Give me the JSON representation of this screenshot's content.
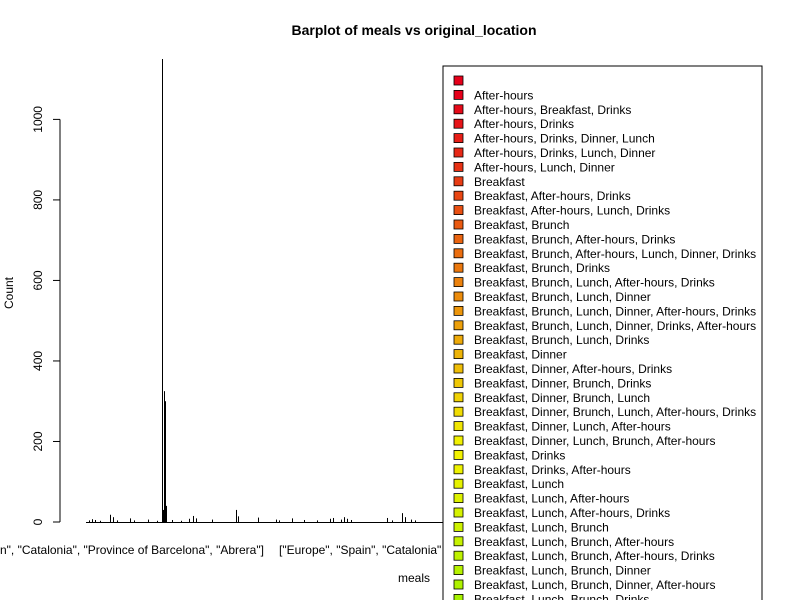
{
  "chart_data": {
    "type": "bar",
    "title": "Barplot of meals vs original_location",
    "xlabel": "meals",
    "ylabel": "Count",
    "ylim": [
      0,
      1150
    ],
    "yticks": [
      0,
      200,
      400,
      600,
      800,
      1000
    ],
    "x_tick_labels": [
      "n\", \"Catalonia\", \"Province of Barcelona\", \"Abrera\"]",
      "[\"Europe\", \"Spain\", \"Catalonia\""
    ],
    "grid": false,
    "legend_position": "top-right",
    "bars": [
      {
        "x": 3,
        "value": 4
      },
      {
        "x": 6,
        "value": 7
      },
      {
        "x": 9,
        "value": 5
      },
      {
        "x": 14,
        "value": 3
      },
      {
        "x": 24,
        "value": 18
      },
      {
        "x": 27,
        "value": 12
      },
      {
        "x": 31,
        "value": 4
      },
      {
        "x": 44,
        "value": 9
      },
      {
        "x": 48,
        "value": 4
      },
      {
        "x": 62,
        "value": 6
      },
      {
        "x": 71,
        "value": 3
      },
      {
        "x": 76,
        "value": 1150
      },
      {
        "x": 77,
        "value": 30
      },
      {
        "x": 78,
        "value": 325
      },
      {
        "x": 79,
        "value": 300
      },
      {
        "x": 80,
        "value": 40
      },
      {
        "x": 86,
        "value": 5
      },
      {
        "x": 95,
        "value": 3
      },
      {
        "x": 103,
        "value": 8
      },
      {
        "x": 107,
        "value": 15
      },
      {
        "x": 110,
        "value": 9
      },
      {
        "x": 126,
        "value": 6
      },
      {
        "x": 150,
        "value": 30
      },
      {
        "x": 152,
        "value": 14
      },
      {
        "x": 172,
        "value": 11
      },
      {
        "x": 190,
        "value": 6
      },
      {
        "x": 193,
        "value": 4
      },
      {
        "x": 206,
        "value": 9
      },
      {
        "x": 218,
        "value": 5
      },
      {
        "x": 231,
        "value": 4
      },
      {
        "x": 244,
        "value": 8
      },
      {
        "x": 247,
        "value": 10
      },
      {
        "x": 255,
        "value": 6
      },
      {
        "x": 258,
        "value": 12
      },
      {
        "x": 261,
        "value": 8
      },
      {
        "x": 265,
        "value": 5
      },
      {
        "x": 301,
        "value": 10
      },
      {
        "x": 306,
        "value": 4
      },
      {
        "x": 316,
        "value": 22
      },
      {
        "x": 319,
        "value": 12
      },
      {
        "x": 325,
        "value": 6
      },
      {
        "x": 329,
        "value": 4
      }
    ],
    "legend": {
      "entries": [
        {
          "label": "",
          "color": "#E6001A"
        },
        {
          "label": "After-hours",
          "color": "#E6001A"
        },
        {
          "label": "After-hours, Breakfast, Drinks",
          "color": "#E60A19"
        },
        {
          "label": "After-hours, Drinks",
          "color": "#E61418"
        },
        {
          "label": "After-hours, Drinks, Dinner, Lunch",
          "color": "#E71E17"
        },
        {
          "label": "After-hours, Drinks, Lunch, Dinner",
          "color": "#E72816"
        },
        {
          "label": "After-hours, Lunch, Dinner",
          "color": "#E83215"
        },
        {
          "label": "Breakfast",
          "color": "#E83C14"
        },
        {
          "label": "Breakfast, After-hours, Drinks",
          "color": "#E94613"
        },
        {
          "label": "Breakfast, After-hours, Lunch, Drinks",
          "color": "#E95012"
        },
        {
          "label": "Breakfast, Brunch",
          "color": "#EA5A11"
        },
        {
          "label": "Breakfast, Brunch, After-hours, Drinks",
          "color": "#EA6410"
        },
        {
          "label": "Breakfast, Brunch, After-hours, Lunch, Dinner, Drinks",
          "color": "#EB6E0F"
        },
        {
          "label": "Breakfast, Brunch, Drinks",
          "color": "#EB780E"
        },
        {
          "label": "Breakfast, Brunch, Lunch, After-hours, Drinks",
          "color": "#EC820D"
        },
        {
          "label": "Breakfast, Brunch, Lunch, Dinner",
          "color": "#EC8C0C"
        },
        {
          "label": "Breakfast, Brunch, Lunch, Dinner, After-hours, Drinks",
          "color": "#ED960B"
        },
        {
          "label": "Breakfast, Brunch, Lunch, Dinner, Drinks, After-hours",
          "color": "#EDA00A"
        },
        {
          "label": "Breakfast, Brunch, Lunch, Drinks",
          "color": "#EEAA09"
        },
        {
          "label": "Breakfast, Dinner",
          "color": "#EEB408"
        },
        {
          "label": "Breakfast, Dinner, After-hours, Drinks",
          "color": "#EFBE07"
        },
        {
          "label": "Breakfast, Dinner, Brunch, Drinks",
          "color": "#EFC806"
        },
        {
          "label": "Breakfast, Dinner, Brunch, Lunch",
          "color": "#F0D205"
        },
        {
          "label": "Breakfast, Dinner, Brunch, Lunch, After-hours, Drinks",
          "color": "#F0DC04"
        },
        {
          "label": "Breakfast, Dinner, Lunch, After-hours",
          "color": "#F1E603"
        },
        {
          "label": "Breakfast, Dinner, Lunch, Brunch, After-hours",
          "color": "#F1F002"
        },
        {
          "label": "Breakfast, Drinks",
          "color": "#F2F201"
        },
        {
          "label": "Breakfast, Drinks, After-hours",
          "color": "#EEF200"
        },
        {
          "label": "Breakfast, Lunch",
          "color": "#E6F200"
        },
        {
          "label": "Breakfast, Lunch, After-hours",
          "color": "#DEF200"
        },
        {
          "label": "Breakfast, Lunch, After-hours, Drinks",
          "color": "#D6F200"
        },
        {
          "label": "Breakfast, Lunch, Brunch",
          "color": "#CEF200"
        },
        {
          "label": "Breakfast, Lunch, Brunch, After-hours",
          "color": "#C6F200"
        },
        {
          "label": "Breakfast, Lunch, Brunch, After-hours, Drinks",
          "color": "#BEF200"
        },
        {
          "label": "Breakfast, Lunch, Brunch, Dinner",
          "color": "#B6F200"
        },
        {
          "label": "Breakfast, Lunch, Brunch, Dinner, After-hours",
          "color": "#AEF200"
        },
        {
          "label": "Breakfast, Lunch, Brunch, Drinks",
          "color": "#A6F200"
        }
      ]
    }
  }
}
